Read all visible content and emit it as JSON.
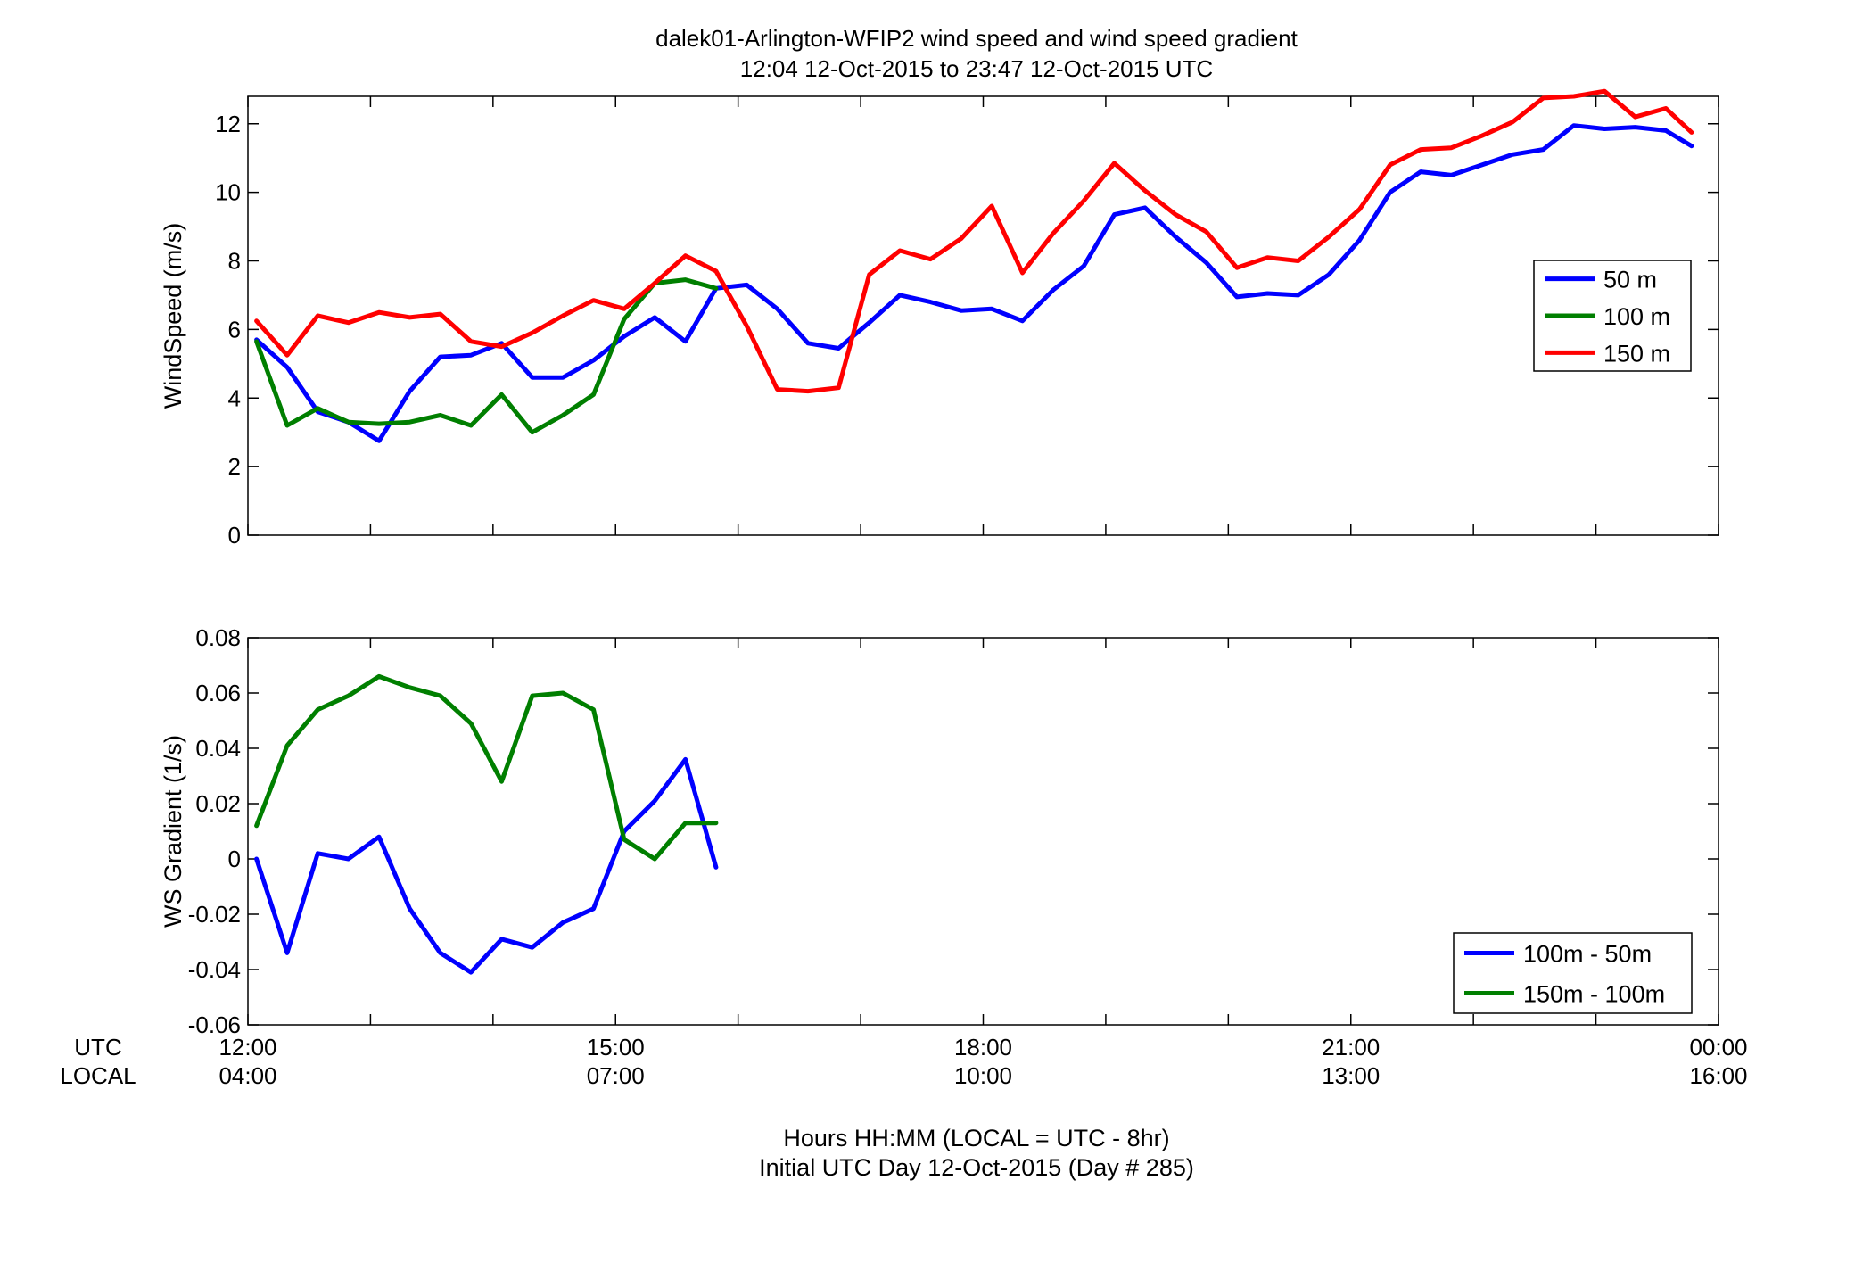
{
  "figure": {
    "title_line1": "dalek01-Arlington-WFIP2  wind speed and wind speed gradient",
    "title_line2": "12:04 12-Oct-2015 to 23:47 12-Oct-2015  UTC",
    "xlabel_line1": "Hours HH:MM  (LOCAL = UTC - 8hr)",
    "xlabel_line2": "Initial UTC Day 12-Oct-2015 (Day # 285)",
    "row_label_utc": "UTC",
    "row_label_local": "LOCAL",
    "x_ticks_utc": [
      "12:00",
      "15:00",
      "18:00",
      "21:00",
      "00:00"
    ],
    "x_ticks_local": [
      "04:00",
      "07:00",
      "10:00",
      "13:00",
      "16:00"
    ]
  },
  "chart_data": [
    {
      "type": "line",
      "ylabel": "WindSpeed (m/s)",
      "xlim": [
        12.0,
        24.0
      ],
      "ylim": [
        0,
        12.8
      ],
      "yticks": [
        0,
        2,
        4,
        6,
        8,
        10,
        12
      ],
      "ytick_labels": [
        "0",
        "2",
        "4",
        "6",
        "8",
        "10",
        "12"
      ],
      "xticks_minor_hours": [
        12,
        13,
        14,
        15,
        16,
        17,
        18,
        19,
        20,
        21,
        22,
        23,
        24
      ],
      "legend_position": "right-middle",
      "series": [
        {
          "name": "50 m",
          "color": "#0000ff",
          "x": [
            12.07,
            12.32,
            12.57,
            12.82,
            13.07,
            13.32,
            13.57,
            13.82,
            14.07,
            14.32,
            14.57,
            14.82,
            15.07,
            15.32,
            15.57,
            15.82,
            16.07,
            16.32,
            16.57,
            16.82,
            17.07,
            17.32,
            17.57,
            17.82,
            18.07,
            18.32,
            18.57,
            18.82,
            19.07,
            19.32,
            19.57,
            19.82,
            20.07,
            20.32,
            20.57,
            20.82,
            21.07,
            21.32,
            21.57,
            21.82,
            22.07,
            22.32,
            22.57,
            22.82,
            23.07,
            23.32,
            23.57,
            23.78
          ],
          "values": [
            5.7,
            4.9,
            3.6,
            3.3,
            2.75,
            4.2,
            5.2,
            5.25,
            5.6,
            4.6,
            4.6,
            5.1,
            5.8,
            6.35,
            5.65,
            7.2,
            7.3,
            6.6,
            5.6,
            5.45,
            6.2,
            7.0,
            6.8,
            6.55,
            6.6,
            6.25,
            7.15,
            7.85,
            9.35,
            9.55,
            8.7,
            7.95,
            6.95,
            7.05,
            7.0,
            7.6,
            8.6,
            10.0,
            10.6,
            10.5,
            10.8,
            11.1,
            11.25,
            11.95,
            11.85,
            11.9,
            11.8,
            11.35
          ]
        },
        {
          "name": "100 m",
          "color": "#007f00",
          "x": [
            12.07,
            12.32,
            12.57,
            12.82,
            13.07,
            13.32,
            13.57,
            13.82,
            14.07,
            14.32,
            14.57,
            14.82,
            15.07,
            15.32,
            15.57,
            15.82
          ],
          "values": [
            5.65,
            3.2,
            3.7,
            3.3,
            3.25,
            3.3,
            3.5,
            3.2,
            4.1,
            3.0,
            3.5,
            4.1,
            6.3,
            7.35,
            7.45,
            7.2
          ]
        },
        {
          "name": "150 m",
          "color": "#ff0000",
          "x": [
            12.07,
            12.32,
            12.57,
            12.82,
            13.07,
            13.32,
            13.57,
            13.82,
            14.07,
            14.32,
            14.57,
            14.82,
            15.07,
            15.32,
            15.57,
            15.82,
            16.07,
            16.32,
            16.57,
            16.82,
            17.07,
            17.32,
            17.57,
            17.82,
            18.07,
            18.32,
            18.57,
            18.82,
            19.07,
            19.32,
            19.57,
            19.82,
            20.07,
            20.32,
            20.57,
            20.82,
            21.07,
            21.32,
            21.57,
            21.82,
            22.07,
            22.32,
            22.57,
            22.82,
            23.07,
            23.32,
            23.57,
            23.78
          ],
          "values": [
            6.25,
            5.25,
            6.4,
            6.2,
            6.5,
            6.35,
            6.45,
            5.65,
            5.5,
            5.9,
            6.4,
            6.85,
            6.6,
            7.35,
            8.15,
            7.7,
            6.1,
            4.25,
            4.2,
            4.3,
            7.6,
            8.3,
            8.05,
            8.65,
            9.6,
            7.65,
            8.8,
            9.75,
            10.85,
            10.05,
            9.35,
            8.85,
            7.8,
            8.1,
            8.0,
            8.7,
            9.5,
            10.8,
            11.25,
            11.3,
            11.65,
            12.05,
            12.75,
            12.8,
            12.95,
            12.2,
            12.45,
            11.75
          ]
        }
      ]
    },
    {
      "type": "line",
      "ylabel": "WS Gradient (1/s)",
      "xlim": [
        12.0,
        24.0
      ],
      "ylim": [
        -0.06,
        0.08
      ],
      "yticks": [
        -0.06,
        -0.04,
        -0.02,
        0,
        0.02,
        0.04,
        0.06,
        0.08
      ],
      "ytick_labels": [
        "-0.06",
        "-0.04",
        "-0.02",
        "0",
        "0.02",
        "0.04",
        "0.06",
        "0.08"
      ],
      "xticks_minor_hours": [
        12,
        13,
        14,
        15,
        16,
        17,
        18,
        19,
        20,
        21,
        22,
        23,
        24
      ],
      "legend_position": "bottom-right",
      "series": [
        {
          "name": "100m - 50m",
          "color": "#0000ff",
          "x": [
            12.07,
            12.32,
            12.57,
            12.82,
            13.07,
            13.32,
            13.57,
            13.82,
            14.07,
            14.32,
            14.57,
            14.82,
            15.07,
            15.32,
            15.57,
            15.82
          ],
          "values": [
            0.0,
            -0.034,
            0.002,
            0.0,
            0.008,
            -0.018,
            -0.034,
            -0.041,
            -0.029,
            -0.032,
            -0.023,
            -0.018,
            0.01,
            0.021,
            0.036,
            -0.003
          ]
        },
        {
          "name": "150m - 100m",
          "color": "#007f00",
          "x": [
            12.07,
            12.32,
            12.57,
            12.82,
            13.07,
            13.32,
            13.57,
            13.82,
            14.07,
            14.32,
            14.57,
            14.82,
            15.07,
            15.32,
            15.57,
            15.82
          ],
          "values": [
            0.012,
            0.041,
            0.054,
            0.059,
            0.066,
            0.062,
            0.059,
            0.049,
            0.028,
            0.059,
            0.06,
            0.054,
            0.007,
            0.0,
            0.013,
            0.013
          ]
        }
      ]
    }
  ]
}
